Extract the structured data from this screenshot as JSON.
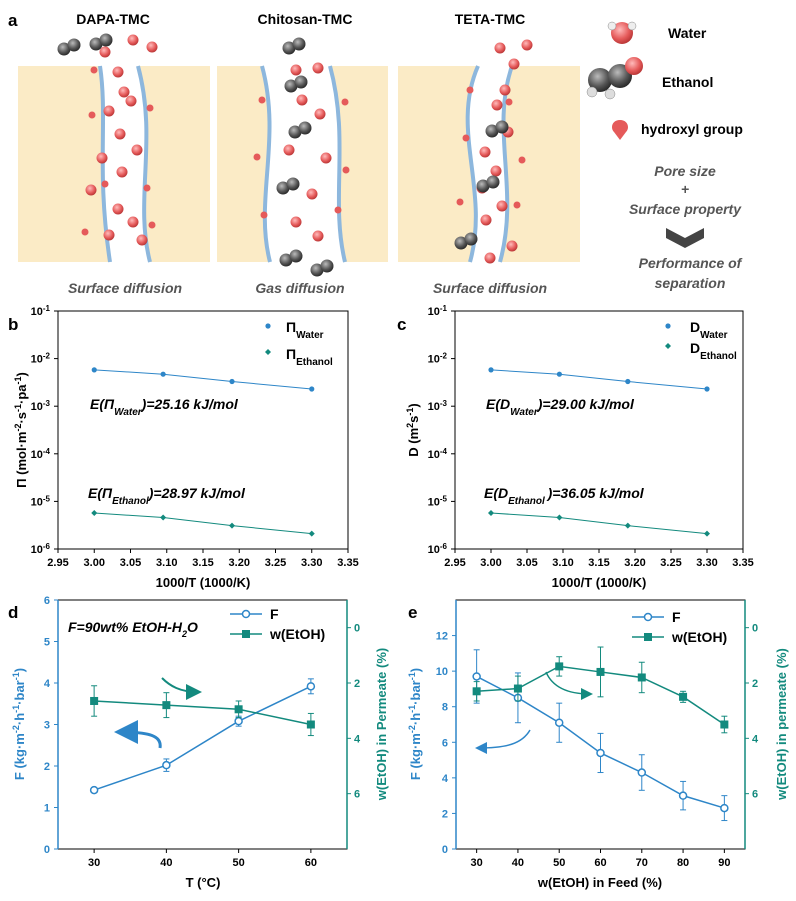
{
  "colors": {
    "blue": "#2E86C8",
    "teal": "#138A7E",
    "membrane": "#FBEBC6",
    "pore_wall": "#8DB7DD",
    "water_red": "#E55A5A",
    "ethanol_gray": "#555555"
  },
  "panel_a": {
    "label": "a",
    "columns": [
      {
        "title": "DAPA-TMC",
        "caption": "Surface diffusion"
      },
      {
        "title": "Chitosan-TMC",
        "caption": "Gas diffusion"
      },
      {
        "title": "TETA-TMC",
        "caption": "Surface diffusion"
      }
    ],
    "legend": {
      "water": "Water",
      "ethanol": "Ethanol",
      "hydroxyl": "hydroxyl group"
    },
    "flow": {
      "line1": "Pore size",
      "plus": "+",
      "line2": "Surface property",
      "result_line1": "Performance of",
      "result_line2": "separation"
    }
  },
  "chart_data": [
    {
      "panel": "b",
      "type": "scatter",
      "xlabel": "1000/T (1000/K)",
      "ylabel": {
        "main": "Π (mol·m",
        "sup1": "-2",
        "mid1": "·s",
        "sup2": "-1",
        "mid2": "·pa",
        "sup3": "-1",
        "end": ")"
      },
      "xlim": [
        2.95,
        3.35
      ],
      "xticks": [
        "2.95",
        "3.00",
        "3.05",
        "3.10",
        "3.15",
        "3.20",
        "3.25",
        "3.30",
        "3.35"
      ],
      "yscale": "log",
      "ylim_exp": [
        -6,
        -1
      ],
      "ytick_base": "10",
      "yticks_exp": [
        "-6",
        "-5",
        "-4",
        "-3",
        "-2",
        "-1"
      ],
      "series": [
        {
          "name": "Water",
          "symbol": "Π",
          "x": [
            3.0,
            3.095,
            3.19,
            3.3
          ],
          "y": [
            0.0058,
            0.0047,
            0.0033,
            0.0023
          ],
          "marker": "circle"
        },
        {
          "name": "Ethanol",
          "symbol": "Π",
          "x": [
            3.0,
            3.095,
            3.19,
            3.3
          ],
          "y": [
            5.7e-06,
            4.6e-06,
            3.1e-06,
            2.1e-06
          ],
          "marker": "diamond"
        }
      ],
      "annotations": [
        {
          "prefix": "E(Π",
          "sub": "Water",
          "suffix": ")=25.16 kJ/mol"
        },
        {
          "prefix": "E(Π",
          "sub": "Ethanol",
          "suffix": ")=28.97 kJ/mol"
        }
      ]
    },
    {
      "panel": "c",
      "type": "scatter",
      "xlabel": "1000/T (1000/K)",
      "ylabel": {
        "main": "D (m",
        "sup1": "2",
        "mid1": "s",
        "sup2": "-1",
        "end": ")"
      },
      "xlim": [
        2.95,
        3.35
      ],
      "xticks": [
        "2.95",
        "3.00",
        "3.05",
        "3.10",
        "3.15",
        "3.20",
        "3.25",
        "3.30",
        "3.35"
      ],
      "yscale": "log",
      "ylim_exp": [
        -6,
        -1
      ],
      "ytick_base": "10",
      "yticks_exp": [
        "-6",
        "-5",
        "-4",
        "-3",
        "-2",
        "-1"
      ],
      "series": [
        {
          "name": "Water",
          "symbol": "D",
          "x": [
            3.0,
            3.095,
            3.19,
            3.3
          ],
          "y": [
            0.0058,
            0.0047,
            0.0033,
            0.0023
          ],
          "marker": "circle"
        },
        {
          "name": "Ethanol",
          "symbol": "D",
          "x": [
            3.0,
            3.095,
            3.19,
            3.3
          ],
          "y": [
            5.7e-06,
            4.6e-06,
            3.1e-06,
            2.1e-06
          ],
          "marker": "diamond"
        }
      ],
      "annotations": [
        {
          "prefix": "E(D",
          "sub": "Water",
          "suffix": ")=29.00 kJ/mol"
        },
        {
          "prefix": "E(D",
          "sub": "Ethanol ",
          "suffix": ")=36.05 kJ/mol"
        }
      ]
    },
    {
      "panel": "d",
      "type": "line",
      "title": "F=90wt% EtOH-H",
      "title_sub": "2",
      "title_end": "O",
      "xlabel": "T (°C)",
      "xlim": [
        25,
        65
      ],
      "xticks": [
        30,
        40,
        50,
        60
      ],
      "ylabel_left": {
        "main": "F (kg·m",
        "sup1": "-2",
        "mid1": "·h",
        "sup2": "-1",
        "mid2": "·bar",
        "sup3": "-1",
        "end": ")"
      },
      "ylabel_right": "w(EtOH) in Permeate (%)",
      "ylim_left": [
        0,
        6
      ],
      "yticks_left": [
        0,
        1,
        2,
        3,
        4,
        5,
        6
      ],
      "ylim_right": [
        8,
        -1
      ],
      "yticks_right": [
        6,
        4,
        2,
        0
      ],
      "series": [
        {
          "name": "F",
          "axis": "left",
          "x": [
            30,
            40,
            50,
            60
          ],
          "y": [
            1.42,
            2.02,
            3.08,
            3.92
          ],
          "err": [
            0.06,
            0.15,
            0.12,
            0.18
          ],
          "marker": "open-circle"
        },
        {
          "name": "w(EtOH)",
          "axis": "right",
          "x": [
            30,
            40,
            50,
            60
          ],
          "y": [
            2.65,
            2.8,
            2.95,
            3.5
          ],
          "err": [
            0.55,
            0.45,
            0.3,
            0.4
          ],
          "marker": "square"
        }
      ]
    },
    {
      "panel": "e",
      "type": "line",
      "xlabel": "w(EtOH) in Feed (%)",
      "xlim": [
        25,
        95
      ],
      "xticks": [
        30,
        40,
        50,
        60,
        70,
        80,
        90
      ],
      "ylabel_left": {
        "main": "F (kg·m",
        "sup1": "-2",
        "mid1": "·h",
        "sup2": "-1",
        "mid2": "·bar",
        "sup3": "-1",
        "end": ")"
      },
      "ylabel_right": "w(EtOH) in permeate (%)",
      "ylim_left": [
        0,
        14
      ],
      "yticks_left": [
        0,
        2,
        4,
        6,
        8,
        10,
        12
      ],
      "ylim_right": [
        8,
        -1
      ],
      "yticks_right": [
        6,
        4,
        2,
        0
      ],
      "series": [
        {
          "name": "F",
          "axis": "left",
          "x": [
            30,
            40,
            50,
            60,
            70,
            80,
            90
          ],
          "y": [
            9.7,
            8.5,
            7.1,
            5.4,
            4.3,
            3.0,
            2.3
          ],
          "err": [
            1.5,
            1.4,
            1.1,
            1.1,
            1.0,
            0.8,
            0.7
          ],
          "marker": "open-circle"
        },
        {
          "name": "w(EtOH)",
          "axis": "right",
          "x": [
            30,
            40,
            50,
            60,
            70,
            80,
            90
          ],
          "y": [
            2.3,
            2.2,
            1.4,
            1.6,
            1.8,
            2.5,
            3.5
          ],
          "err": [
            0.35,
            0.45,
            0.35,
            0.9,
            0.55,
            0.2,
            0.3
          ],
          "marker": "square"
        }
      ]
    }
  ]
}
